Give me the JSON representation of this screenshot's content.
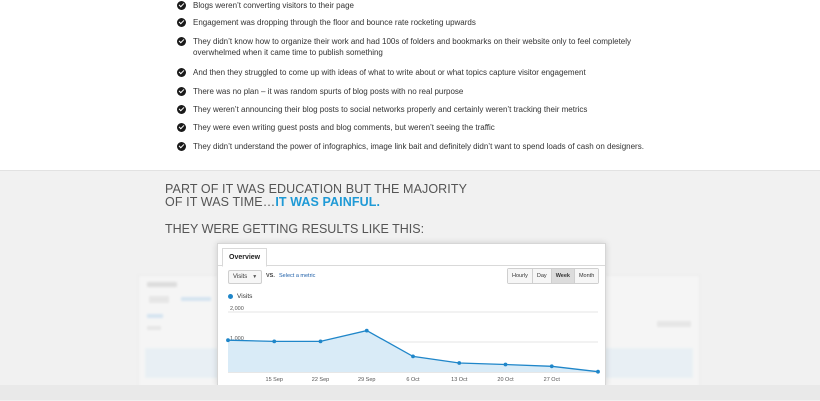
{
  "bullets": [
    "Blogs weren’t converting visitors to their page",
    "Engagement was dropping through the floor and bounce rate rocketing upwards",
    "They didn’t know how to organize their work and had 100s of folders and bookmarks on their website only to feel completely overwhelmed when it came time to publish something",
    "And then they struggled to come up with ideas of what to write about or what topics capture visitor engagement",
    "There was no plan – it was random spurts of blog posts with no real purpose",
    "They weren’t announcing their blog posts to social networks properly and certainly weren’t tracking their metrics",
    "They were even writing guest posts and blog comments, but weren’t seeing the traffic",
    "They didn’t understand the power of infographics, image link bait and definitely  didn’t want to spend loads of cash on designers."
  ],
  "headline": {
    "line1": "PART OF IT WAS EDUCATION BUT THE MAJORITY",
    "line2": "OF IT WAS TIME…",
    "highlight": "IT WAS PAINFUL."
  },
  "subhead": "THEY WERE GETTING RESULTS LIKE THIS:",
  "analytics": {
    "tab": "Overview",
    "metric_select": "Visits",
    "vs_label": "VS.",
    "select_metric_link": "Select a metric",
    "granularity_buttons": [
      "Hourly",
      "Day",
      "Week",
      "Month"
    ],
    "active_granularity": "Week",
    "legend_label": "Visits"
  },
  "colors": {
    "accent": "#1f9ad6",
    "series_line": "#1f86c9",
    "series_fill": "#d9ebf7",
    "text": "#555555"
  },
  "icons": {
    "bullet": "check-circle-icon",
    "dropdown": "caret-down-icon",
    "legend": "legend-dot-icon"
  },
  "chart_data": {
    "type": "area",
    "title": "",
    "xlabel": "",
    "ylabel": "",
    "x_tick_labels": [
      "15 Sep",
      "22 Sep",
      "29 Sep",
      "6 Oct",
      "13 Oct",
      "20 Oct",
      "27 Oct"
    ],
    "y_tick_labels": [
      "2,000",
      "1,000"
    ],
    "ylim": [
      0,
      2200
    ],
    "grid": true,
    "series": [
      {
        "name": "Visits",
        "x": [
          "8 Sep",
          "15 Sep",
          "22 Sep",
          "29 Sep",
          "6 Oct",
          "13 Oct",
          "20 Oct",
          "27 Oct",
          "3 Nov"
        ],
        "values": [
          1060,
          1020,
          1020,
          1380,
          520,
          300,
          250,
          190,
          10
        ]
      }
    ]
  }
}
